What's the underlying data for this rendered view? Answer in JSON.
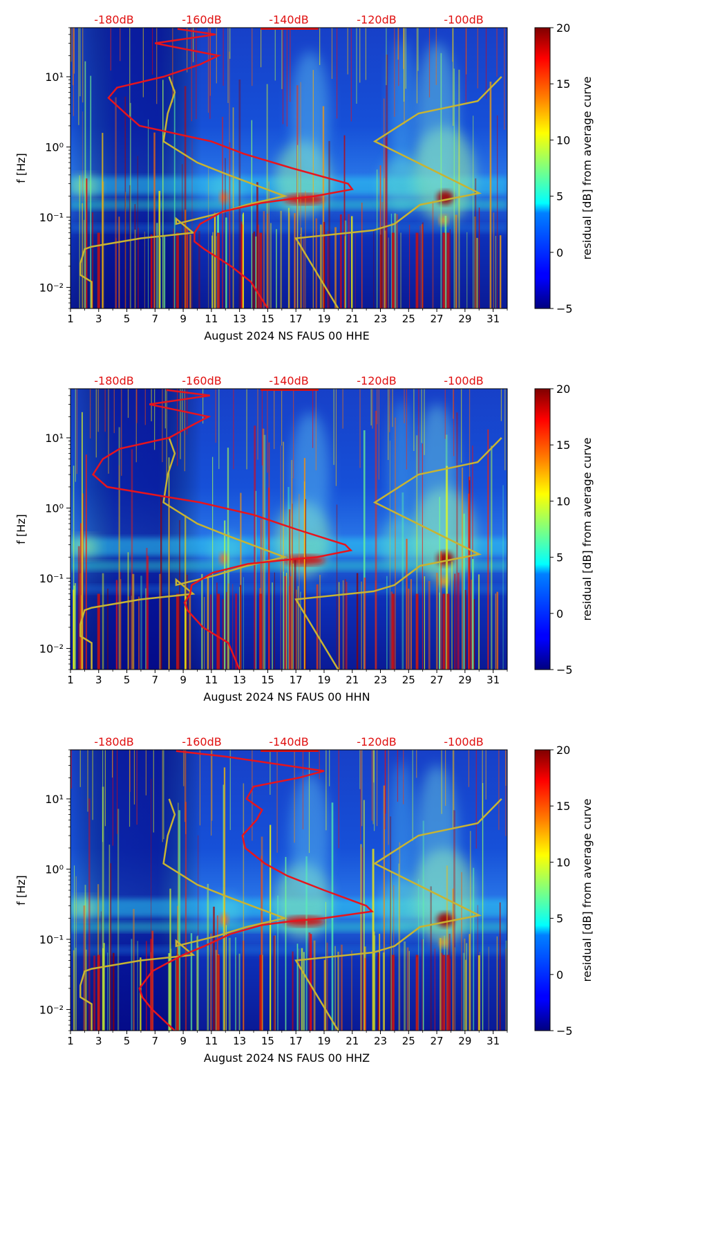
{
  "chart_data": [
    {
      "type": "heatmap",
      "xlabel": "August 2024 NS FAUS 00 HHE",
      "ylabel": "f [Hz]",
      "x_ticks": [
        "1",
        "3",
        "5",
        "7",
        "9",
        "11",
        "13",
        "15",
        "17",
        "19",
        "21",
        "23",
        "25",
        "27",
        "29",
        "31"
      ],
      "y_ticks": [
        "10⁻²",
        "10⁻¹",
        "10⁰",
        "10¹"
      ],
      "top_ticks": [
        "-180dB",
        "-160dB",
        "-140dB",
        "-120dB",
        "-100dB"
      ],
      "colorbar": {
        "label": "residual [dB] from average curve",
        "ticks": [
          "−5",
          "0",
          "5",
          "10",
          "15",
          "20"
        ],
        "range": [
          -5,
          20
        ]
      },
      "xlim": [
        1,
        32
      ],
      "ylim_hz": [
        0.005,
        50
      ],
      "average_curve": {
        "color": "#e8141c",
        "points": [
          [
            48,
            8.6
          ],
          [
            40,
            11.3
          ],
          [
            30,
            7.0
          ],
          [
            20,
            11.5
          ],
          [
            15,
            10.2
          ],
          [
            10,
            7.6
          ],
          [
            7,
            4.3
          ],
          [
            5,
            3.7
          ],
          [
            3,
            4.9
          ],
          [
            2,
            5.9
          ],
          [
            1.2,
            11.0
          ],
          [
            0.8,
            13.3
          ],
          [
            0.5,
            16.7
          ],
          [
            0.3,
            20.7
          ],
          [
            0.25,
            21.0
          ],
          [
            0.2,
            18.4
          ],
          [
            0.18,
            16.5
          ],
          [
            0.16,
            14.6
          ],
          [
            0.12,
            11.8
          ],
          [
            0.08,
            10.2
          ],
          [
            0.06,
            9.8
          ],
          [
            0.045,
            9.8
          ],
          [
            0.035,
            10.5
          ],
          [
            0.02,
            12.4
          ],
          [
            0.012,
            13.8
          ],
          [
            0.005,
            15.0
          ]
        ]
      },
      "noise_model_curve": {
        "color": "#c8b432",
        "points": [
          [
            10,
            8.0
          ],
          [
            6,
            8.4
          ],
          [
            3,
            7.9
          ],
          [
            1.2,
            7.6
          ],
          [
            0.6,
            10.0
          ],
          [
            0.4,
            12.2
          ],
          [
            0.2,
            16.2
          ],
          [
            0.15,
            13.5
          ],
          [
            0.11,
            11.3
          ],
          [
            0.08,
            8.5
          ],
          [
            0.095,
            8.5
          ],
          [
            0.06,
            9.7
          ],
          [
            0.05,
            6.0
          ],
          [
            0.038,
            2.5
          ],
          [
            0.035,
            2.0
          ],
          [
            0.022,
            1.7
          ],
          [
            0.015,
            1.7
          ],
          [
            0.012,
            2.5
          ],
          [
            0.005,
            2.5
          ]
        ]
      },
      "noise_model_high": {
        "color": "#c8b432",
        "points": [
          [
            10,
            31.6
          ],
          [
            4.5,
            29.9
          ],
          [
            3.0,
            25.7
          ],
          [
            1.2,
            22.6
          ],
          [
            0.22,
            30.0
          ],
          [
            0.15,
            25.8
          ],
          [
            0.08,
            24.0
          ],
          [
            0.065,
            22.5
          ],
          [
            0.05,
            17.0
          ],
          [
            0.005,
            20.0
          ]
        ]
      }
    },
    {
      "type": "heatmap",
      "xlabel": "August 2024 NS FAUS 00 HHN",
      "ylabel": "f [Hz]",
      "x_ticks": [
        "1",
        "3",
        "5",
        "7",
        "9",
        "11",
        "13",
        "15",
        "17",
        "19",
        "21",
        "23",
        "25",
        "27",
        "29",
        "31"
      ],
      "y_ticks": [
        "10⁻²",
        "10⁻¹",
        "10⁰",
        "10¹"
      ],
      "top_ticks": [
        "-180dB",
        "-160dB",
        "-140dB",
        "-120dB",
        "-100dB"
      ],
      "colorbar": {
        "label": "residual [dB] from average curve",
        "ticks": [
          "−5",
          "0",
          "5",
          "10",
          "15",
          "20"
        ],
        "range": [
          -5,
          20
        ]
      },
      "xlim": [
        1,
        32
      ],
      "ylim_hz": [
        0.005,
        50
      ],
      "average_curve": {
        "color": "#e8141c",
        "points": [
          [
            48,
            7.8
          ],
          [
            40,
            10.9
          ],
          [
            30,
            6.6
          ],
          [
            20,
            10.8
          ],
          [
            15,
            9.6
          ],
          [
            10,
            8.0
          ],
          [
            7,
            4.5
          ],
          [
            5,
            3.3
          ],
          [
            3,
            2.6
          ],
          [
            2,
            3.6
          ],
          [
            1.2,
            10.2
          ],
          [
            0.8,
            14.0
          ],
          [
            0.5,
            17.0
          ],
          [
            0.3,
            20.5
          ],
          [
            0.25,
            20.9
          ],
          [
            0.2,
            18.5
          ],
          [
            0.18,
            16.0
          ],
          [
            0.16,
            13.6
          ],
          [
            0.12,
            11.1
          ],
          [
            0.08,
            9.6
          ],
          [
            0.06,
            9.5
          ],
          [
            0.045,
            9.1
          ],
          [
            0.035,
            9.3
          ],
          [
            0.02,
            10.4
          ],
          [
            0.012,
            12.2
          ],
          [
            0.005,
            13.0
          ]
        ]
      },
      "noise_model_curve": {
        "color": "#c8b432",
        "points": [
          [
            10,
            8.0
          ],
          [
            6,
            8.4
          ],
          [
            3,
            7.9
          ],
          [
            1.2,
            7.6
          ],
          [
            0.6,
            10.0
          ],
          [
            0.4,
            12.2
          ],
          [
            0.2,
            16.2
          ],
          [
            0.15,
            13.5
          ],
          [
            0.11,
            11.3
          ],
          [
            0.08,
            8.5
          ],
          [
            0.095,
            8.5
          ],
          [
            0.06,
            9.7
          ],
          [
            0.05,
            6.0
          ],
          [
            0.038,
            2.5
          ],
          [
            0.035,
            2.0
          ],
          [
            0.022,
            1.7
          ],
          [
            0.015,
            1.7
          ],
          [
            0.012,
            2.5
          ],
          [
            0.005,
            2.5
          ]
        ]
      },
      "noise_model_high": {
        "color": "#c8b432",
        "points": [
          [
            10,
            31.6
          ],
          [
            4.5,
            29.9
          ],
          [
            3.0,
            25.7
          ],
          [
            1.2,
            22.6
          ],
          [
            0.22,
            30.0
          ],
          [
            0.15,
            25.8
          ],
          [
            0.08,
            24.0
          ],
          [
            0.065,
            22.5
          ],
          [
            0.05,
            17.0
          ],
          [
            0.005,
            20.0
          ]
        ]
      }
    },
    {
      "type": "heatmap",
      "xlabel": "August 2024 NS FAUS 00 HHZ",
      "ylabel": "f [Hz]",
      "x_ticks": [
        "1",
        "3",
        "5",
        "7",
        "9",
        "11",
        "13",
        "15",
        "17",
        "19",
        "21",
        "23",
        "25",
        "27",
        "29",
        "31"
      ],
      "y_ticks": [
        "10⁻²",
        "10⁻¹",
        "10⁰",
        "10¹"
      ],
      "top_ticks": [
        "-180dB",
        "-160dB",
        "-140dB",
        "-120dB",
        "-100dB"
      ],
      "colorbar": {
        "label": "residual [dB] from average curve",
        "ticks": [
          "−5",
          "0",
          "5",
          "10",
          "15",
          "20"
        ],
        "range": [
          -5,
          20
        ]
      },
      "xlim": [
        1,
        32
      ],
      "ylim_hz": [
        0.005,
        50
      ],
      "average_curve": {
        "color": "#e8141c",
        "points": [
          [
            48,
            8.5
          ],
          [
            40,
            12.0
          ],
          [
            25,
            19.0
          ],
          [
            20,
            17.2
          ],
          [
            15,
            14.0
          ],
          [
            10,
            13.5
          ],
          [
            7,
            14.6
          ],
          [
            5,
            14.2
          ],
          [
            3,
            13.2
          ],
          [
            2,
            13.4
          ],
          [
            1.2,
            14.8
          ],
          [
            0.8,
            16.4
          ],
          [
            0.5,
            19.0
          ],
          [
            0.3,
            22.0
          ],
          [
            0.25,
            22.4
          ],
          [
            0.2,
            19.0
          ],
          [
            0.18,
            16.6
          ],
          [
            0.16,
            14.6
          ],
          [
            0.12,
            12.4
          ],
          [
            0.08,
            10.5
          ],
          [
            0.06,
            9.0
          ],
          [
            0.045,
            7.8
          ],
          [
            0.035,
            6.8
          ],
          [
            0.02,
            5.9
          ],
          [
            0.015,
            6.1
          ],
          [
            0.01,
            6.8
          ],
          [
            0.005,
            8.4
          ]
        ]
      },
      "noise_model_curve": {
        "color": "#c8b432",
        "points": [
          [
            10,
            8.0
          ],
          [
            6,
            8.4
          ],
          [
            3,
            7.9
          ],
          [
            1.2,
            7.6
          ],
          [
            0.6,
            10.0
          ],
          [
            0.4,
            12.2
          ],
          [
            0.2,
            16.2
          ],
          [
            0.15,
            13.5
          ],
          [
            0.11,
            11.3
          ],
          [
            0.08,
            8.5
          ],
          [
            0.095,
            8.5
          ],
          [
            0.06,
            9.7
          ],
          [
            0.05,
            6.0
          ],
          [
            0.038,
            2.5
          ],
          [
            0.035,
            2.0
          ],
          [
            0.022,
            1.7
          ],
          [
            0.015,
            1.7
          ],
          [
            0.012,
            2.5
          ],
          [
            0.005,
            2.5
          ]
        ]
      },
      "noise_model_high": {
        "color": "#c8b432",
        "points": [
          [
            10,
            31.6
          ],
          [
            4.5,
            29.9
          ],
          [
            3.0,
            25.7
          ],
          [
            1.2,
            22.6
          ],
          [
            0.22,
            30.0
          ],
          [
            0.15,
            25.8
          ],
          [
            0.08,
            24.0
          ],
          [
            0.065,
            22.5
          ],
          [
            0.05,
            17.0
          ],
          [
            0.005,
            20.0
          ]
        ]
      }
    }
  ]
}
